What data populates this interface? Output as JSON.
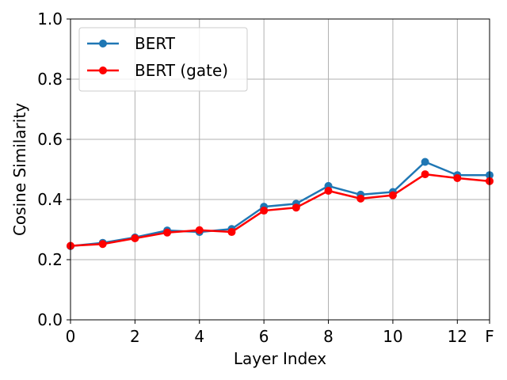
{
  "chart_data": {
    "type": "line",
    "title": "",
    "xlabel": "Layer Index",
    "ylabel": "Cosine Similarity",
    "x": [
      0,
      1,
      2,
      3,
      4,
      5,
      6,
      7,
      8,
      9,
      10,
      11,
      12,
      13
    ],
    "xticks": [
      0,
      2,
      4,
      6,
      8,
      10,
      12,
      13
    ],
    "xtick_labels": [
      "0",
      "2",
      "4",
      "6",
      "8",
      "10",
      "12",
      "F"
    ],
    "xlim": [
      0,
      13
    ],
    "yticks": [
      0.0,
      0.2,
      0.4,
      0.6,
      0.8,
      1.0
    ],
    "ytick_labels": [
      "0.0",
      "0.2",
      "0.4",
      "0.6",
      "0.8",
      "1.0"
    ],
    "ylim": [
      0,
      1
    ],
    "grid": true,
    "legend_position": "top-left",
    "series": [
      {
        "name": "BERT",
        "color": "#1f77b4",
        "marker": "circle",
        "values": [
          0.245,
          0.256,
          0.274,
          0.297,
          0.292,
          0.302,
          0.376,
          0.386,
          0.445,
          0.416,
          0.425,
          0.525,
          0.481,
          0.481
        ]
      },
      {
        "name": "BERT (gate)",
        "color": "#ff0000",
        "marker": "circle",
        "values": [
          0.246,
          0.252,
          0.271,
          0.29,
          0.298,
          0.292,
          0.363,
          0.373,
          0.429,
          0.403,
          0.414,
          0.484,
          0.471,
          0.461
        ]
      }
    ]
  }
}
